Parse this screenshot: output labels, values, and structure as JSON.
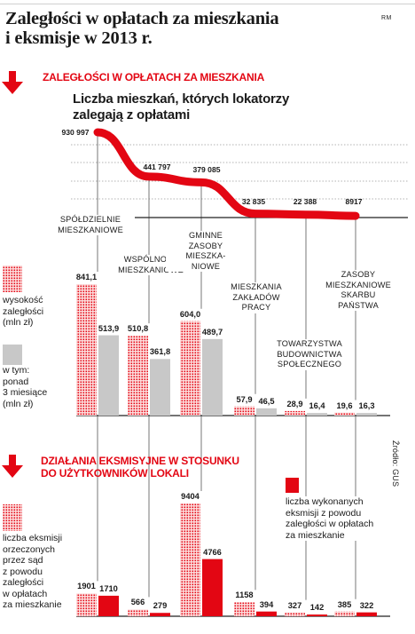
{
  "title_line1": "Zaległości w opłatach za mieszkania",
  "title_line2": "i eksmisje w 2013 r.",
  "credit": "RM",
  "source": "Źródło: GUS",
  "colors": {
    "red": "#e30613",
    "dark_red": "#c4000f",
    "gray": "#c8c8c8",
    "dotted_bg": "#fbd0d0"
  },
  "section1": {
    "heading": "ZALEGŁOŚCI W OPŁATACH ZA MIESZKANIA",
    "subtitle_line1": "Liczba mieszkań, których lokatorzy",
    "subtitle_line2": "zalegają z opłatami"
  },
  "section2": {
    "heading_line1": "DZIAŁANIA EKSMISYJNE W STOSUNKU",
    "heading_line2": "DO UŻYTKOWNIKÓW LOKALI"
  },
  "legend": {
    "debt_line1": "wysokość",
    "debt_line2": "zaległości",
    "debt_line3": "(mln zł)",
    "over3_line1": "w tym:",
    "over3_line2": "ponad",
    "over3_line3": "3 miesiące",
    "over3_line4": "(mln zł)",
    "ordered_line1": "liczba eksmisji",
    "ordered_line2": "orzeczonych",
    "ordered_line3": "przez sąd",
    "ordered_line4": "z powodu",
    "ordered_line5": "zaległości",
    "ordered_line6": "w opłatach",
    "ordered_line7": "za mieszkanie",
    "executed_line1": "liczba wykonanych",
    "executed_line2": "eksmisji z powodu",
    "executed_line3": "zaległości w opłatach",
    "executed_line4": "za mieszkanie"
  },
  "chart_data": [
    {
      "type": "line",
      "title": "Liczba mieszkań, których lokatorzy zalegają z opłatami",
      "categories": [
        [
          "SPÓŁDZIELNIE",
          "MIESZKANIOWE"
        ],
        [
          "WSPÓLNOTY",
          "MIESZKANIOWE"
        ],
        [
          "GMINNE",
          "ZASOBY",
          "MIESZKA-",
          "NIOWE"
        ],
        [
          "MIESZKANIA",
          "ZAKŁADÓW",
          "PRACY"
        ],
        [
          "TOWARZYSTWA",
          "BUDOWNICTWA",
          "SPOŁECZNEGO"
        ],
        [
          "ZASOBY",
          "MIESZKANIOWE",
          "SKARBU",
          "PAŃSTWA"
        ]
      ],
      "values": [
        930997,
        441797,
        379085,
        32835,
        22388,
        8917
      ],
      "value_labels": [
        "930 997",
        "441 797",
        "379 085",
        "32 835",
        "22 388",
        "8917"
      ]
    },
    {
      "type": "bar",
      "series": [
        {
          "name": "wysokość zaległości (mln zł)",
          "values": [
            841.1,
            510.8,
            604.0,
            57.9,
            28.9,
            19.6
          ],
          "labels": [
            "841,1",
            "510,8",
            "604,0",
            "57,9",
            "28,9",
            "19,6"
          ]
        },
        {
          "name": "w tym: ponad 3 miesiące (mln zł)",
          "values": [
            513.9,
            361.8,
            489.7,
            46.5,
            16.4,
            16.3
          ],
          "labels": [
            "513,9",
            "361,8",
            "489,7",
            "46,5",
            "16,4",
            "16,3"
          ]
        }
      ]
    },
    {
      "type": "bar",
      "series": [
        {
          "name": "liczba eksmisji orzeczonych przez sąd z powodu zaległości w opłatach za mieszkanie",
          "values": [
            1901,
            566,
            9404,
            1158,
            327,
            385
          ],
          "labels": [
            "1901",
            "566",
            "9404",
            "1158",
            "327",
            "385"
          ]
        },
        {
          "name": "liczba wykonanych eksmisji z powodu zaległości w opłatach za mieszkanie",
          "values": [
            1710,
            279,
            4766,
            394,
            142,
            322
          ],
          "labels": [
            "1710",
            "279",
            "4766",
            "394",
            "142",
            "322"
          ]
        }
      ]
    }
  ]
}
